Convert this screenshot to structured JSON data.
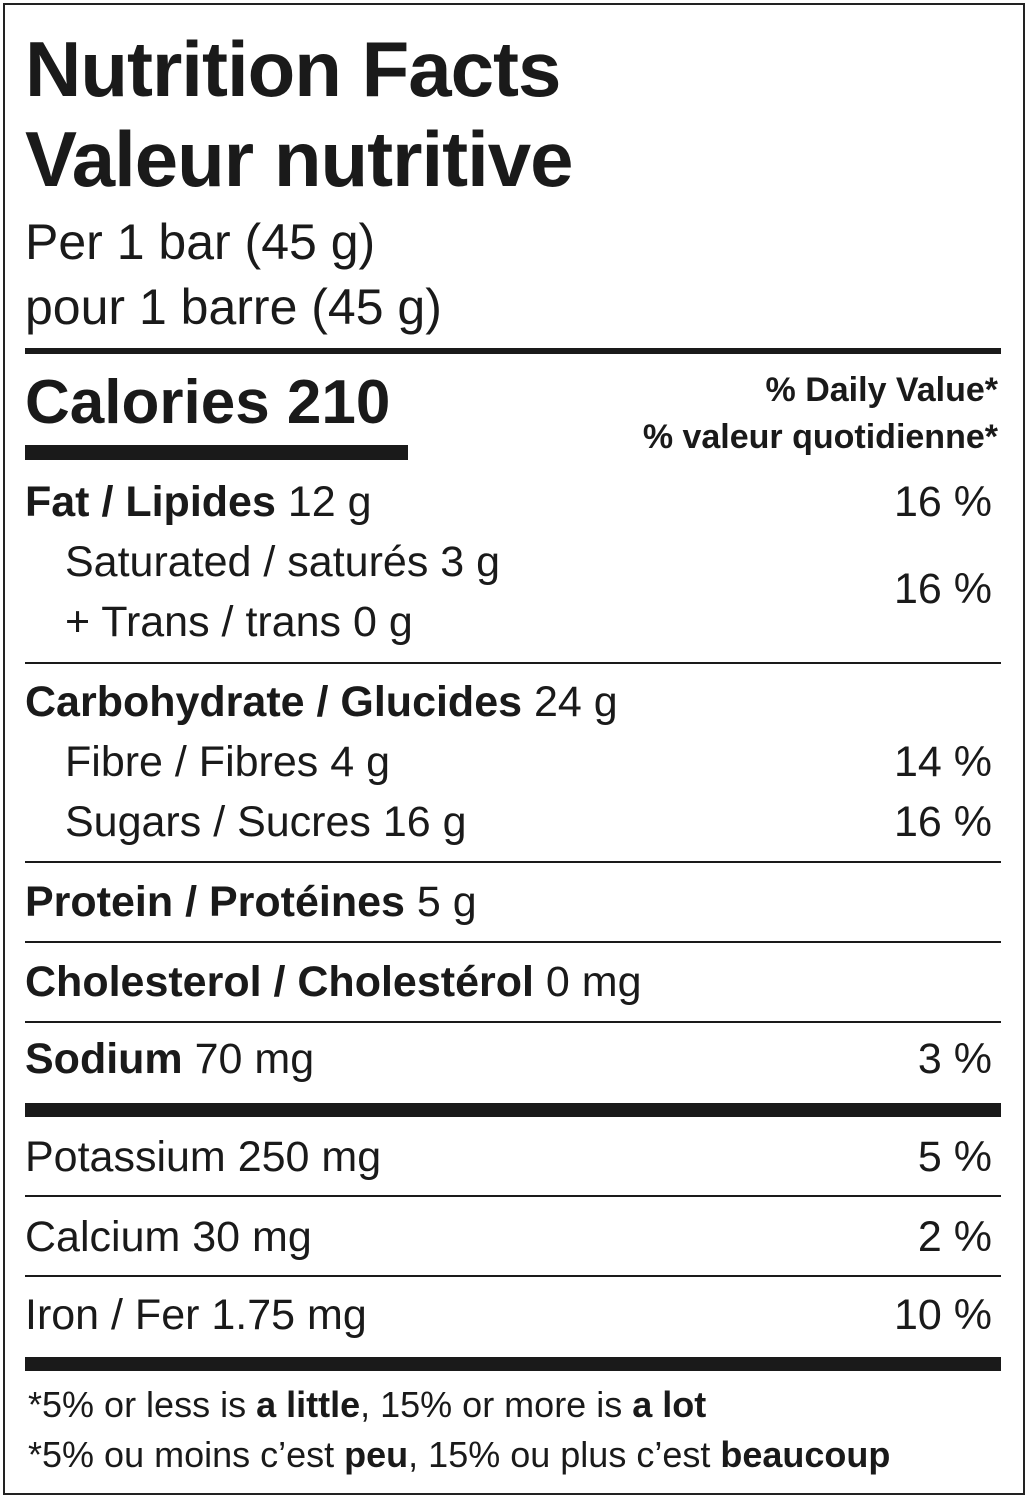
{
  "title_en": "Nutrition Facts",
  "title_fr": "Valeur nutritive",
  "serving_en": "Per 1 bar (45 g)",
  "serving_fr": "pour 1 barre (45 g)",
  "calories": {
    "label": "Calories",
    "value": "210"
  },
  "daily_value_en": "% Daily Value*",
  "daily_value_fr": "% valeur quotidienne*",
  "rows": {
    "fat": {
      "label": "Fat / Lipides",
      "amount": "12 g",
      "pct": "16 %"
    },
    "saturated": {
      "label": "Saturated / saturés 3 g"
    },
    "trans": {
      "label": "+ Trans / trans 0 g"
    },
    "sat_trans_pct": "16 %",
    "carb": {
      "label": "Carbohydrate / Glucides",
      "amount": "24 g"
    },
    "fibre": {
      "label": "Fibre / Fibres 4 g",
      "pct": "14 %"
    },
    "sugars": {
      "label": "Sugars / Sucres 16 g",
      "pct": "16 %"
    },
    "protein": {
      "label": "Protein / Protéines",
      "amount": "5 g"
    },
    "cholesterol": {
      "label": "Cholesterol / Cholestérol",
      "amount": "0 mg"
    },
    "sodium": {
      "label": "Sodium",
      "amount": "70 mg",
      "pct": "3 %"
    },
    "potassium": {
      "label": "Potassium 250 mg",
      "pct": "5 %"
    },
    "calcium": {
      "label": "Calcium 30 mg",
      "pct": "2 %"
    },
    "iron": {
      "label": "Iron / Fer 1.75 mg",
      "pct": "10 %"
    }
  },
  "footnote_en": {
    "a": "*5% or less is ",
    "b": "a little",
    "c": ", 15% or more is ",
    "d": "a lot"
  },
  "footnote_fr": {
    "a": "*5% ou moins c’est ",
    "b": "peu",
    "c": ", 15% ou plus c’est ",
    "d": "beaucoup"
  }
}
